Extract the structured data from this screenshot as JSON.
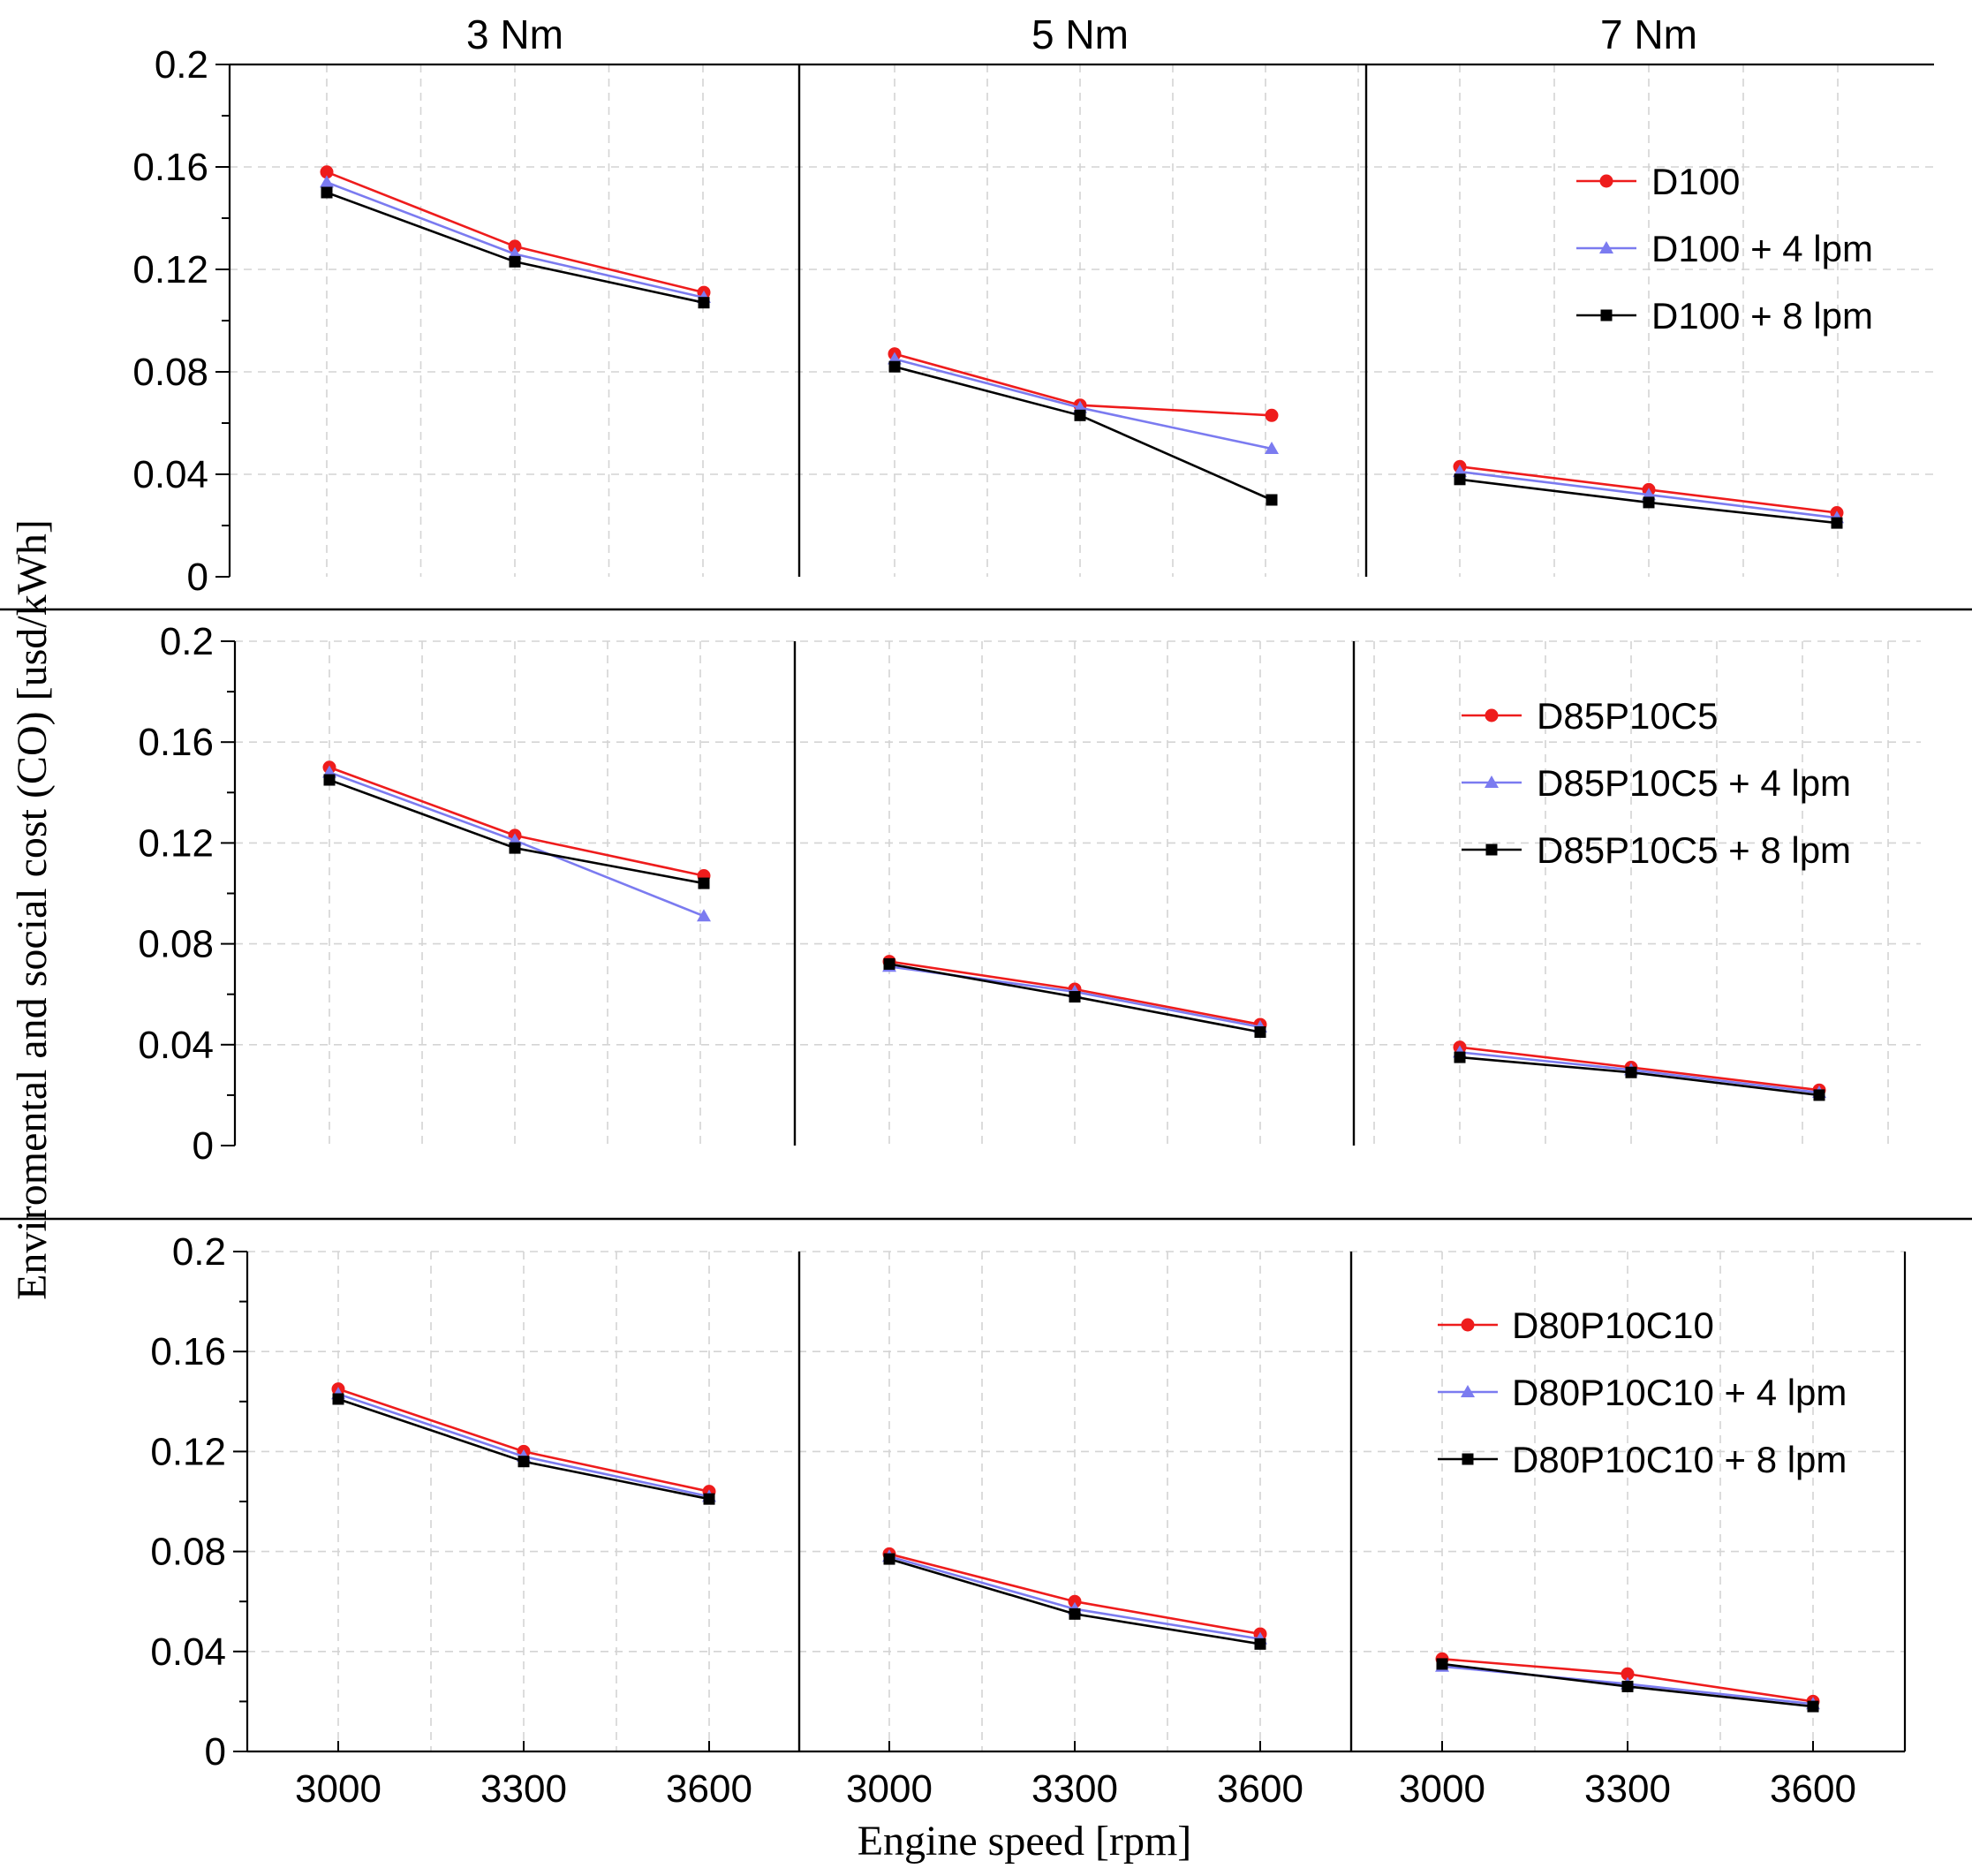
{
  "chart_data": {
    "type": "line",
    "ylabel": "Enviromental and social cost (CO) [usd/kWh]",
    "xlabel": "Engine speed [rpm]",
    "ylim": [
      0,
      0.2
    ],
    "yticks": [
      "0",
      "0.04",
      "0.08",
      "0.12",
      "0.16",
      "0.2"
    ],
    "xticks": [
      "3000",
      "3300",
      "3600"
    ],
    "x": [
      3000,
      3300,
      3600
    ],
    "columns": [
      "3 Nm",
      "5 Nm",
      "7 Nm"
    ],
    "colors": {
      "base": "#ee1c1c",
      "lpm4": "#7b7bf0",
      "lpm8": "#000000"
    },
    "markers": {
      "base": "circle",
      "lpm4": "triangle",
      "lpm8": "square"
    },
    "rows": [
      {
        "legend": [
          "D100",
          "D100 + 4 lpm",
          "D100 + 8 lpm"
        ],
        "panels": [
          {
            "base": [
              0.158,
              0.129,
              0.111
            ],
            "lpm4": [
              0.154,
              0.126,
              0.109
            ],
            "lpm8": [
              0.15,
              0.123,
              0.107
            ]
          },
          {
            "base": [
              0.087,
              0.067,
              0.063
            ],
            "lpm4": [
              0.085,
              0.066,
              0.05
            ],
            "lpm8": [
              0.082,
              0.063,
              0.03
            ]
          },
          {
            "base": [
              0.043,
              0.034,
              0.025
            ],
            "lpm4": [
              0.041,
              0.032,
              0.023
            ],
            "lpm8": [
              0.038,
              0.029,
              0.021
            ]
          }
        ]
      },
      {
        "legend": [
          "D85P10C5",
          "D85P10C5 + 4 lpm",
          "D85P10C5 + 8 lpm"
        ],
        "panels": [
          {
            "base": [
              0.15,
              0.123,
              0.107
            ],
            "lpm4": [
              0.148,
              0.121,
              0.091
            ],
            "lpm8": [
              0.145,
              0.118,
              0.104
            ]
          },
          {
            "base": [
              0.073,
              0.062,
              0.048
            ],
            "lpm4": [
              0.071,
              0.061,
              0.047
            ],
            "lpm8": [
              0.072,
              0.059,
              0.045
            ]
          },
          {
            "base": [
              0.039,
              0.031,
              0.022
            ],
            "lpm4": [
              0.037,
              0.03,
              0.021
            ],
            "lpm8": [
              0.035,
              0.029,
              0.02
            ]
          }
        ]
      },
      {
        "legend": [
          "D80P10C10",
          "D80P10C10 + 4 lpm",
          "D80P10C10 + 8 lpm"
        ],
        "panels": [
          {
            "base": [
              0.145,
              0.12,
              0.104
            ],
            "lpm4": [
              0.143,
              0.118,
              0.102
            ],
            "lpm8": [
              0.141,
              0.116,
              0.101
            ]
          },
          {
            "base": [
              0.079,
              0.06,
              0.047
            ],
            "lpm4": [
              0.078,
              0.057,
              0.045
            ],
            "lpm8": [
              0.077,
              0.055,
              0.043
            ]
          },
          {
            "base": [
              0.037,
              0.031,
              0.02
            ],
            "lpm4": [
              0.034,
              0.027,
              0.019
            ],
            "lpm8": [
              0.035,
              0.026,
              0.018
            ]
          }
        ]
      }
    ]
  }
}
